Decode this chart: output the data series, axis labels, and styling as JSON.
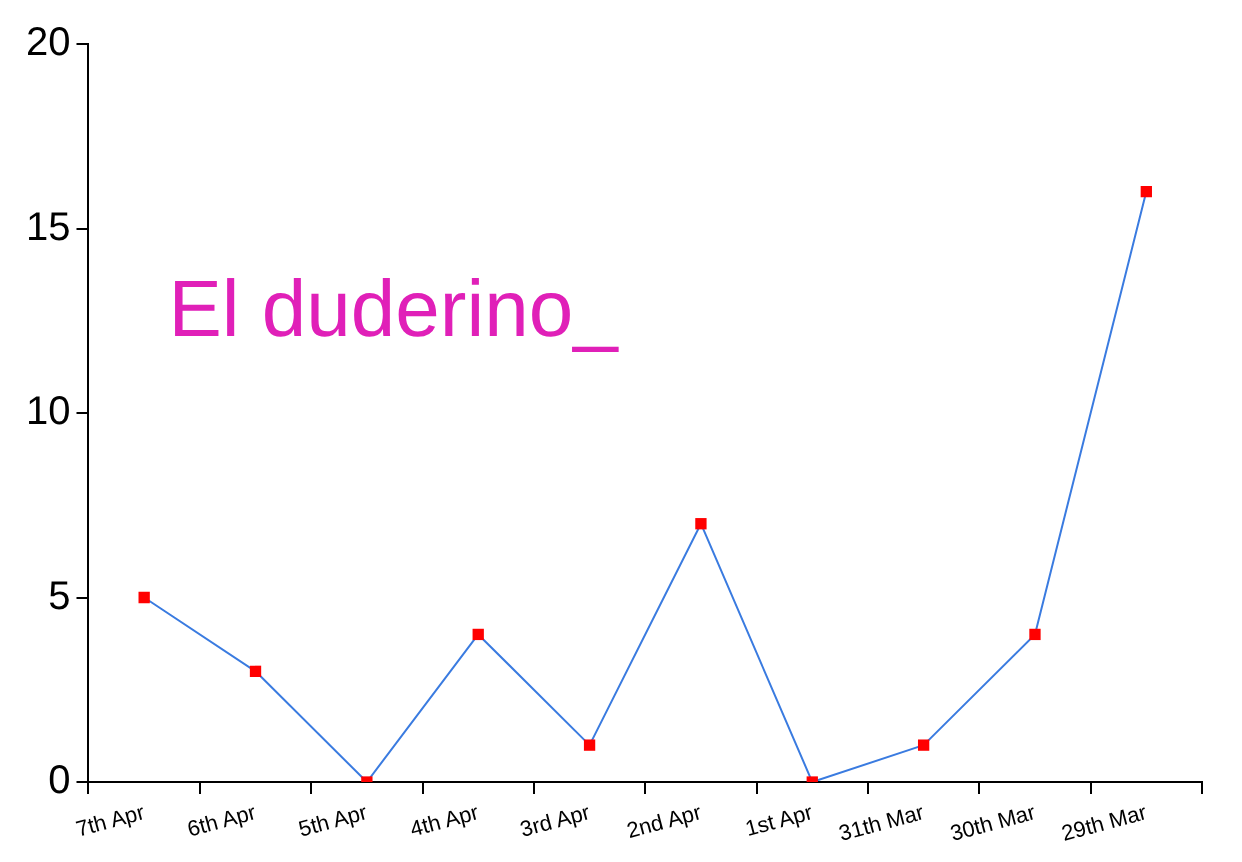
{
  "chart_data": {
    "type": "line",
    "categories": [
      "7th Apr",
      "6th Apr",
      "5th Apr",
      "4th Apr",
      "3rd Apr",
      "2nd Apr",
      "1st Apr",
      "31th Mar",
      "30th Mar",
      "29th Mar"
    ],
    "series": [
      {
        "color": "#3a7be0",
        "colors": [
          "#ff0000",
          "#ff0000",
          "#ff0000",
          "#ff0000",
          "#ff0000",
          "#ff0000",
          "#ff0000",
          "#ff0000",
          "#ff0000",
          "#ff0000"
        ],
        "values": [
          5,
          3,
          0,
          4,
          1,
          7,
          0,
          1,
          4,
          16
        ]
      }
    ],
    "marker": "square",
    "ylim": [
      0,
      20
    ],
    "yticks": [
      0,
      5,
      10,
      15,
      20
    ],
    "grid": false,
    "legend": false,
    "annotations": [
      "El duderino_"
    ]
  }
}
